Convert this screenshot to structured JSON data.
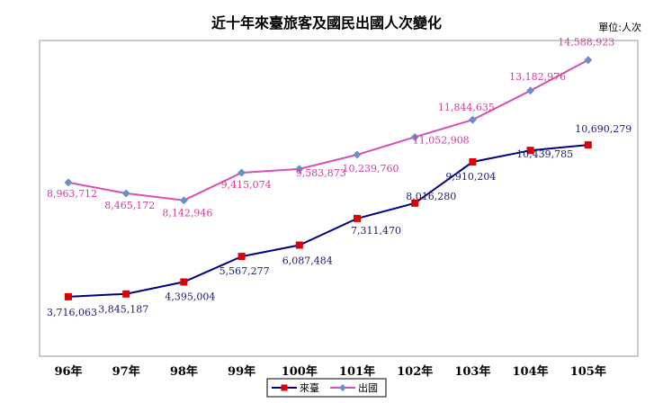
{
  "chart_data": {
    "type": "line",
    "title": "近十年來臺旅客及國民出國人次變化",
    "unit_label": "單位:人次",
    "categories": [
      "96年",
      "97年",
      "98年",
      "99年",
      "100年",
      "101年",
      "102年",
      "103年",
      "104年",
      "105年"
    ],
    "series": [
      {
        "name": "來臺",
        "color": "#000080",
        "marker_color": "#e00000",
        "marker": "square",
        "values": [
          3716063,
          3845187,
          4395004,
          5567277,
          6087484,
          7311470,
          8016280,
          9910204,
          10439785,
          10690279
        ],
        "labels": [
          "3,716,063",
          "3,845,187",
          "4,395,004",
          "5,567,277",
          "6,087,484",
          "7,311,470",
          "8,016,280",
          "9,910,204",
          "10,439,785",
          "10,690,279"
        ]
      },
      {
        "name": "出國",
        "color": "#d94fb5",
        "marker_color": "#6a8fc8",
        "marker": "diamond",
        "values": [
          8963712,
          8465172,
          8142946,
          9415074,
          9583873,
          10239760,
          11052908,
          11844635,
          13182976,
          14588923
        ],
        "labels": [
          "8,963,712",
          "8,465,172",
          "8,142,946",
          "9,415,074",
          "9,583,873",
          "10,239,760",
          "11,052,908",
          "11,844,635",
          "13,182,976",
          "14,588,923"
        ]
      }
    ],
    "ylim": [
      0,
      16000000
    ],
    "grid": false,
    "plot_background": "#ffffff",
    "legend_position": "bottom-center"
  }
}
